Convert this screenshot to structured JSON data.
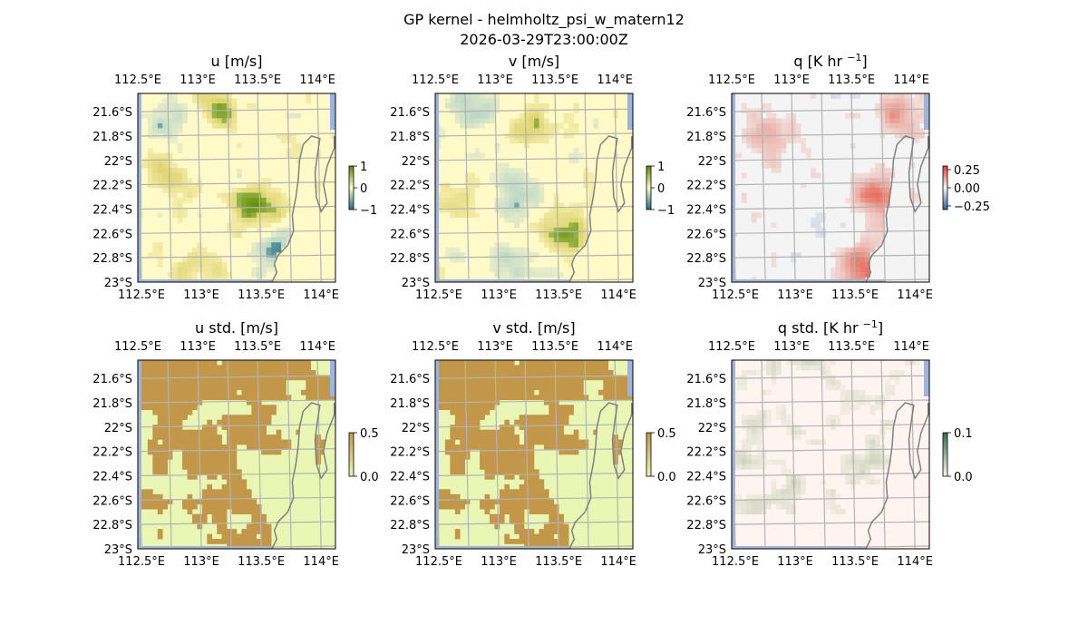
{
  "figure": {
    "title": "GP kernel - helmholtz_psi_w_matern12",
    "timestamp": "2026-03-29T23:00:00Z"
  },
  "axes": {
    "lon_ticks": [
      "112.5°E",
      "113°E",
      "113.5°E",
      "114°E"
    ],
    "lat_ticks": [
      "21.6°S",
      "21.8°S",
      "22°S",
      "22.2°S",
      "22.4°S",
      "22.6°S",
      "22.8°S",
      "23°S"
    ],
    "lon_values": [
      112.5,
      113.0,
      113.5,
      114.0
    ],
    "lat_values": [
      -21.6,
      -21.8,
      -22.0,
      -22.2,
      -22.4,
      -22.6,
      -22.8,
      -23.0
    ],
    "extent": {
      "lon_min": 112.5,
      "lon_max": 114.15,
      "lat_min": -23.0,
      "lat_max": -21.45
    }
  },
  "colors": {
    "ocean": "#9db4dc",
    "coast": "#808080",
    "grid": "#b3b3b3",
    "diverging_low": "#1f6f8b",
    "diverging_mid": "#fffac8",
    "diverging_high": "#5a8a00",
    "std_low": "#eaf6b4",
    "std_high": "#c3974a",
    "heat_mid": "#f4f4f4",
    "heat_high": "#e0402a",
    "heat_low": "#3060a0"
  },
  "chart_data": [
    {
      "type": "heatmap",
      "title": "u [m/s]",
      "colorbar_ticks": [
        "1",
        "0",
        "−1"
      ],
      "colorbar_values": [
        1,
        0,
        -1
      ],
      "vmin": -1,
      "vmax": 1,
      "cmap": "diverging",
      "features": [
        {
          "lon": 113.5,
          "lat": -22.4,
          "value": 0.9
        },
        {
          "lon": 113.2,
          "lat": -21.6,
          "value": 0.6
        },
        {
          "lon": 112.8,
          "lat": -22.1,
          "value": 0.4
        },
        {
          "lon": 113.6,
          "lat": -22.7,
          "value": -0.5
        },
        {
          "lon": 112.7,
          "lat": -21.7,
          "value": -0.4
        },
        {
          "lon": 113.0,
          "lat": -22.9,
          "value": 0.4
        }
      ]
    },
    {
      "type": "heatmap",
      "title": "v [m/s]",
      "colorbar_ticks": [
        "1",
        "0",
        "−1"
      ],
      "colorbar_values": [
        1,
        0,
        -1
      ],
      "vmin": -1,
      "vmax": 1,
      "cmap": "diverging",
      "features": [
        {
          "lon": 112.8,
          "lat": -21.6,
          "value": -0.6
        },
        {
          "lon": 113.3,
          "lat": -21.7,
          "value": 0.4
        },
        {
          "lon": 113.6,
          "lat": -22.6,
          "value": 0.5
        },
        {
          "lon": 113.2,
          "lat": -22.8,
          "value": -0.5
        },
        {
          "lon": 112.7,
          "lat": -22.3,
          "value": 0.4
        },
        {
          "lon": 113.2,
          "lat": -22.3,
          "value": -0.4
        }
      ]
    },
    {
      "type": "heatmap",
      "title": "q [K hr −1]",
      "colorbar_ticks": [
        "0.25",
        "0.00",
        "−0.25"
      ],
      "colorbar_values": [
        0.25,
        0.0,
        -0.25
      ],
      "vmin": -0.3,
      "vmax": 0.3,
      "cmap": "heat",
      "features": [
        {
          "lon": 113.7,
          "lat": -22.3,
          "value": 0.2
        },
        {
          "lon": 113.6,
          "lat": -22.9,
          "value": 0.25
        },
        {
          "lon": 113.9,
          "lat": -21.6,
          "value": 0.15
        },
        {
          "lon": 112.8,
          "lat": -21.8,
          "value": 0.1
        }
      ]
    },
    {
      "type": "heatmap",
      "title": "u std. [m/s]",
      "colorbar_ticks": [
        "0.5",
        "0.0"
      ],
      "colorbar_values": [
        0.5,
        0.0
      ],
      "vmin": 0,
      "vmax": 0.5,
      "cmap": "std",
      "features": []
    },
    {
      "type": "heatmap",
      "title": "v std. [m/s]",
      "colorbar_ticks": [
        "0.5",
        "0.0"
      ],
      "colorbar_values": [
        0.5,
        0.0
      ],
      "vmin": 0,
      "vmax": 0.5,
      "cmap": "std",
      "features": []
    },
    {
      "type": "heatmap",
      "title": "q std. [K hr −1]",
      "colorbar_ticks": [
        "0.1",
        "0.0"
      ],
      "colorbar_values": [
        0.1,
        0.0
      ],
      "vmin": 0,
      "vmax": 0.1,
      "cmap": "qstd",
      "features": []
    }
  ]
}
